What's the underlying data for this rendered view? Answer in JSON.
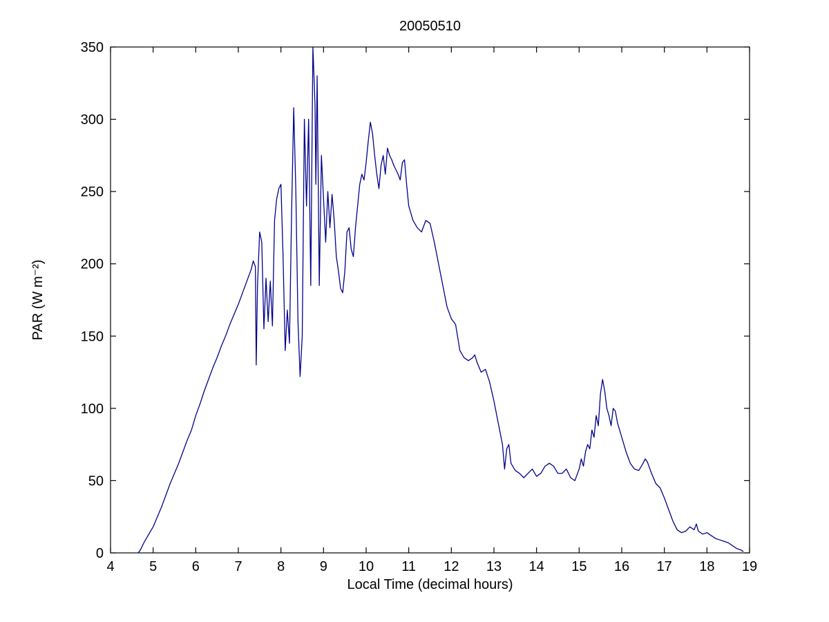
{
  "chart_data": {
    "type": "line",
    "title": "20050510",
    "xlabel": "Local Time (decimal hours)",
    "ylabel": "PAR (W m⁻²)",
    "xlim": [
      4,
      19
    ],
    "ylim": [
      0,
      350
    ],
    "xticks": [
      4,
      5,
      6,
      7,
      8,
      9,
      10,
      11,
      12,
      13,
      14,
      15,
      16,
      17,
      18,
      19
    ],
    "yticks": [
      0,
      50,
      100,
      150,
      200,
      250,
      300,
      350
    ],
    "grid": false,
    "legend": null,
    "line_color": "#00008B",
    "axis_color": "#000000",
    "background_color": "#ffffff",
    "series": [
      {
        "name": "PAR",
        "x": [
          4.65,
          4.7,
          4.8,
          4.9,
          5.0,
          5.1,
          5.2,
          5.3,
          5.4,
          5.5,
          5.6,
          5.7,
          5.8,
          5.9,
          6.0,
          6.1,
          6.2,
          6.3,
          6.4,
          6.5,
          6.6,
          6.7,
          6.8,
          6.9,
          7.0,
          7.1,
          7.2,
          7.3,
          7.35,
          7.4,
          7.42,
          7.45,
          7.5,
          7.55,
          7.6,
          7.65,
          7.7,
          7.75,
          7.8,
          7.85,
          7.9,
          7.95,
          8.0,
          8.05,
          8.1,
          8.15,
          8.2,
          8.25,
          8.3,
          8.35,
          8.4,
          8.45,
          8.5,
          8.55,
          8.6,
          8.65,
          8.7,
          8.75,
          8.8,
          8.82,
          8.85,
          8.9,
          8.95,
          9.0,
          9.05,
          9.1,
          9.15,
          9.2,
          9.25,
          9.3,
          9.35,
          9.4,
          9.45,
          9.5,
          9.55,
          9.6,
          9.65,
          9.7,
          9.75,
          9.8,
          9.85,
          9.9,
          9.95,
          10.0,
          10.05,
          10.1,
          10.15,
          10.2,
          10.25,
          10.3,
          10.35,
          10.4,
          10.45,
          10.5,
          10.55,
          10.6,
          10.65,
          10.7,
          10.75,
          10.8,
          10.85,
          10.9,
          10.95,
          11.0,
          11.1,
          11.2,
          11.3,
          11.4,
          11.5,
          11.6,
          11.7,
          11.8,
          11.9,
          12.0,
          12.1,
          12.2,
          12.3,
          12.4,
          12.5,
          12.55,
          12.6,
          12.7,
          12.8,
          12.9,
          13.0,
          13.1,
          13.2,
          13.25,
          13.3,
          13.35,
          13.4,
          13.5,
          13.6,
          13.7,
          13.8,
          13.9,
          14.0,
          14.1,
          14.2,
          14.3,
          14.4,
          14.5,
          14.6,
          14.7,
          14.8,
          14.9,
          15.0,
          15.05,
          15.1,
          15.15,
          15.2,
          15.25,
          15.3,
          15.35,
          15.4,
          15.45,
          15.5,
          15.55,
          15.6,
          15.65,
          15.7,
          15.75,
          15.8,
          15.85,
          15.9,
          16.0,
          16.1,
          16.2,
          16.3,
          16.4,
          16.5,
          16.55,
          16.6,
          16.7,
          16.8,
          16.9,
          17.0,
          17.1,
          17.2,
          17.3,
          17.4,
          17.5,
          17.6,
          17.7,
          17.75,
          17.8,
          17.9,
          18.0,
          18.1,
          18.2,
          18.3,
          18.4,
          18.5,
          18.6,
          18.7,
          18.8,
          18.85
        ],
        "y": [
          0,
          2,
          8,
          13,
          18,
          25,
          32,
          40,
          48,
          55,
          62,
          70,
          78,
          85,
          95,
          103,
          112,
          120,
          128,
          135,
          143,
          150,
          158,
          165,
          172,
          180,
          188,
          196,
          202,
          198,
          130,
          185,
          222,
          215,
          155,
          190,
          160,
          188,
          157,
          230,
          245,
          252,
          255,
          205,
          140,
          168,
          145,
          235,
          308,
          250,
          160,
          122,
          150,
          300,
          240,
          300,
          185,
          350,
          310,
          255,
          330,
          185,
          275,
          245,
          215,
          250,
          225,
          248,
          230,
          205,
          195,
          183,
          180,
          195,
          222,
          225,
          210,
          205,
          225,
          240,
          255,
          262,
          258,
          270,
          285,
          298,
          290,
          275,
          262,
          252,
          268,
          275,
          262,
          280,
          275,
          272,
          268,
          265,
          262,
          258,
          270,
          272,
          255,
          240,
          230,
          225,
          222,
          230,
          228,
          215,
          200,
          185,
          170,
          162,
          158,
          140,
          135,
          133,
          135,
          137,
          132,
          125,
          127,
          118,
          105,
          90,
          75,
          58,
          72,
          75,
          62,
          57,
          55,
          52,
          55,
          58,
          53,
          55,
          60,
          62,
          60,
          55,
          55,
          58,
          52,
          50,
          58,
          65,
          60,
          70,
          75,
          72,
          85,
          80,
          95,
          88,
          110,
          120,
          112,
          100,
          95,
          88,
          100,
          98,
          90,
          80,
          70,
          62,
          58,
          57,
          62,
          65,
          63,
          55,
          48,
          45,
          38,
          30,
          22,
          16,
          14,
          15,
          18,
          16,
          20,
          15,
          13,
          14,
          12,
          10,
          9,
          8,
          7,
          5,
          3,
          2,
          1
        ]
      }
    ]
  }
}
